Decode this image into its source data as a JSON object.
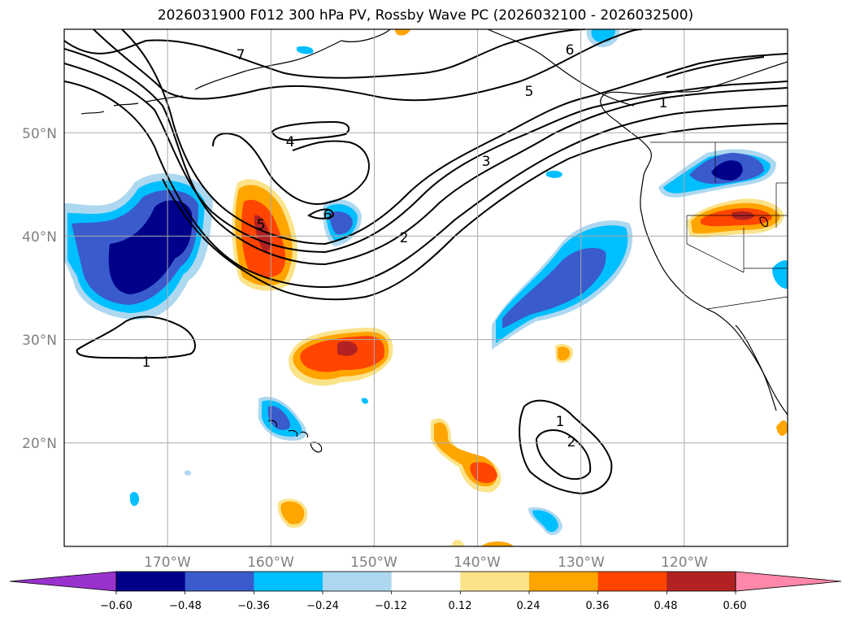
{
  "title": "2026031900 F012 300 hPa PV, Rossby Wave PC (2026032100 - 2026032500)",
  "map": {
    "lon_range": [
      -180,
      -110
    ],
    "lat_range": [
      10,
      60
    ],
    "lat_ticks": [
      {
        "value": 50,
        "label": "50°N"
      },
      {
        "value": 40,
        "label": "40°N"
      },
      {
        "value": 30,
        "label": "30°N"
      },
      {
        "value": 20,
        "label": "20°N"
      }
    ],
    "lon_ticks": [
      {
        "value": -170,
        "label": "170°W"
      },
      {
        "value": -160,
        "label": "160°W"
      },
      {
        "value": -150,
        "label": "150°W"
      },
      {
        "value": -140,
        "label": "140°W"
      },
      {
        "value": -130,
        "label": "130°W"
      },
      {
        "value": -120,
        "label": "120°W"
      }
    ],
    "grid": true,
    "contour_labels": [
      "7",
      "6",
      "5",
      "4",
      "3",
      "2",
      "1",
      "6",
      "5",
      "1",
      "1",
      "2"
    ]
  },
  "colorbar": {
    "ticks": [
      "−0.60",
      "−0.48",
      "−0.36",
      "−0.24",
      "−0.12",
      "0.12",
      "0.24",
      "0.36",
      "0.48",
      "0.60"
    ],
    "colors": [
      "#9932cc",
      "#00008b",
      "#3a5bcc",
      "#00bfff",
      "#add8f0",
      "#ffffff",
      "#fbe38a",
      "#ffa500",
      "#ff4500",
      "#b22222",
      "#ff88aa"
    ]
  }
}
